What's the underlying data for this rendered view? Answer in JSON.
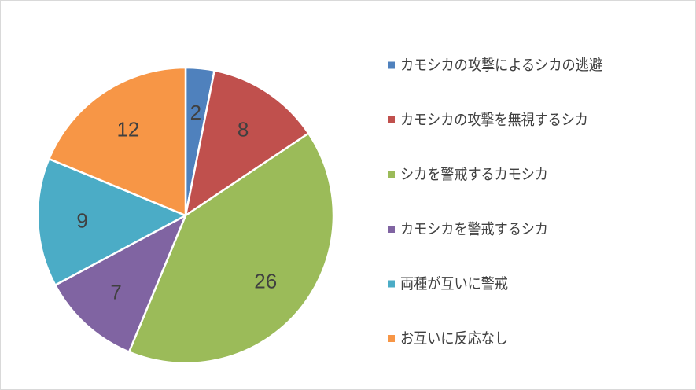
{
  "chart_data": {
    "type": "pie",
    "title": "",
    "categories": [
      "カモシカの攻撃によるシカの逃避",
      "カモシカの攻撃を無視するシカ",
      "シカを警戒するカモシカ",
      "カモシカを警戒するシカ",
      "両種が互いに警戒",
      "お互いに反応なし"
    ],
    "values": [
      2,
      8,
      26,
      7,
      9,
      12
    ],
    "colors": [
      "#4f81bd",
      "#c0504d",
      "#9bbb59",
      "#8064a2",
      "#4bacc6",
      "#f79646"
    ],
    "data_labels": [
      "2",
      "8",
      "26",
      "7",
      "9",
      "12"
    ],
    "start_angle": "12 o'clock",
    "direction": "clockwise",
    "legend_position": "right"
  }
}
